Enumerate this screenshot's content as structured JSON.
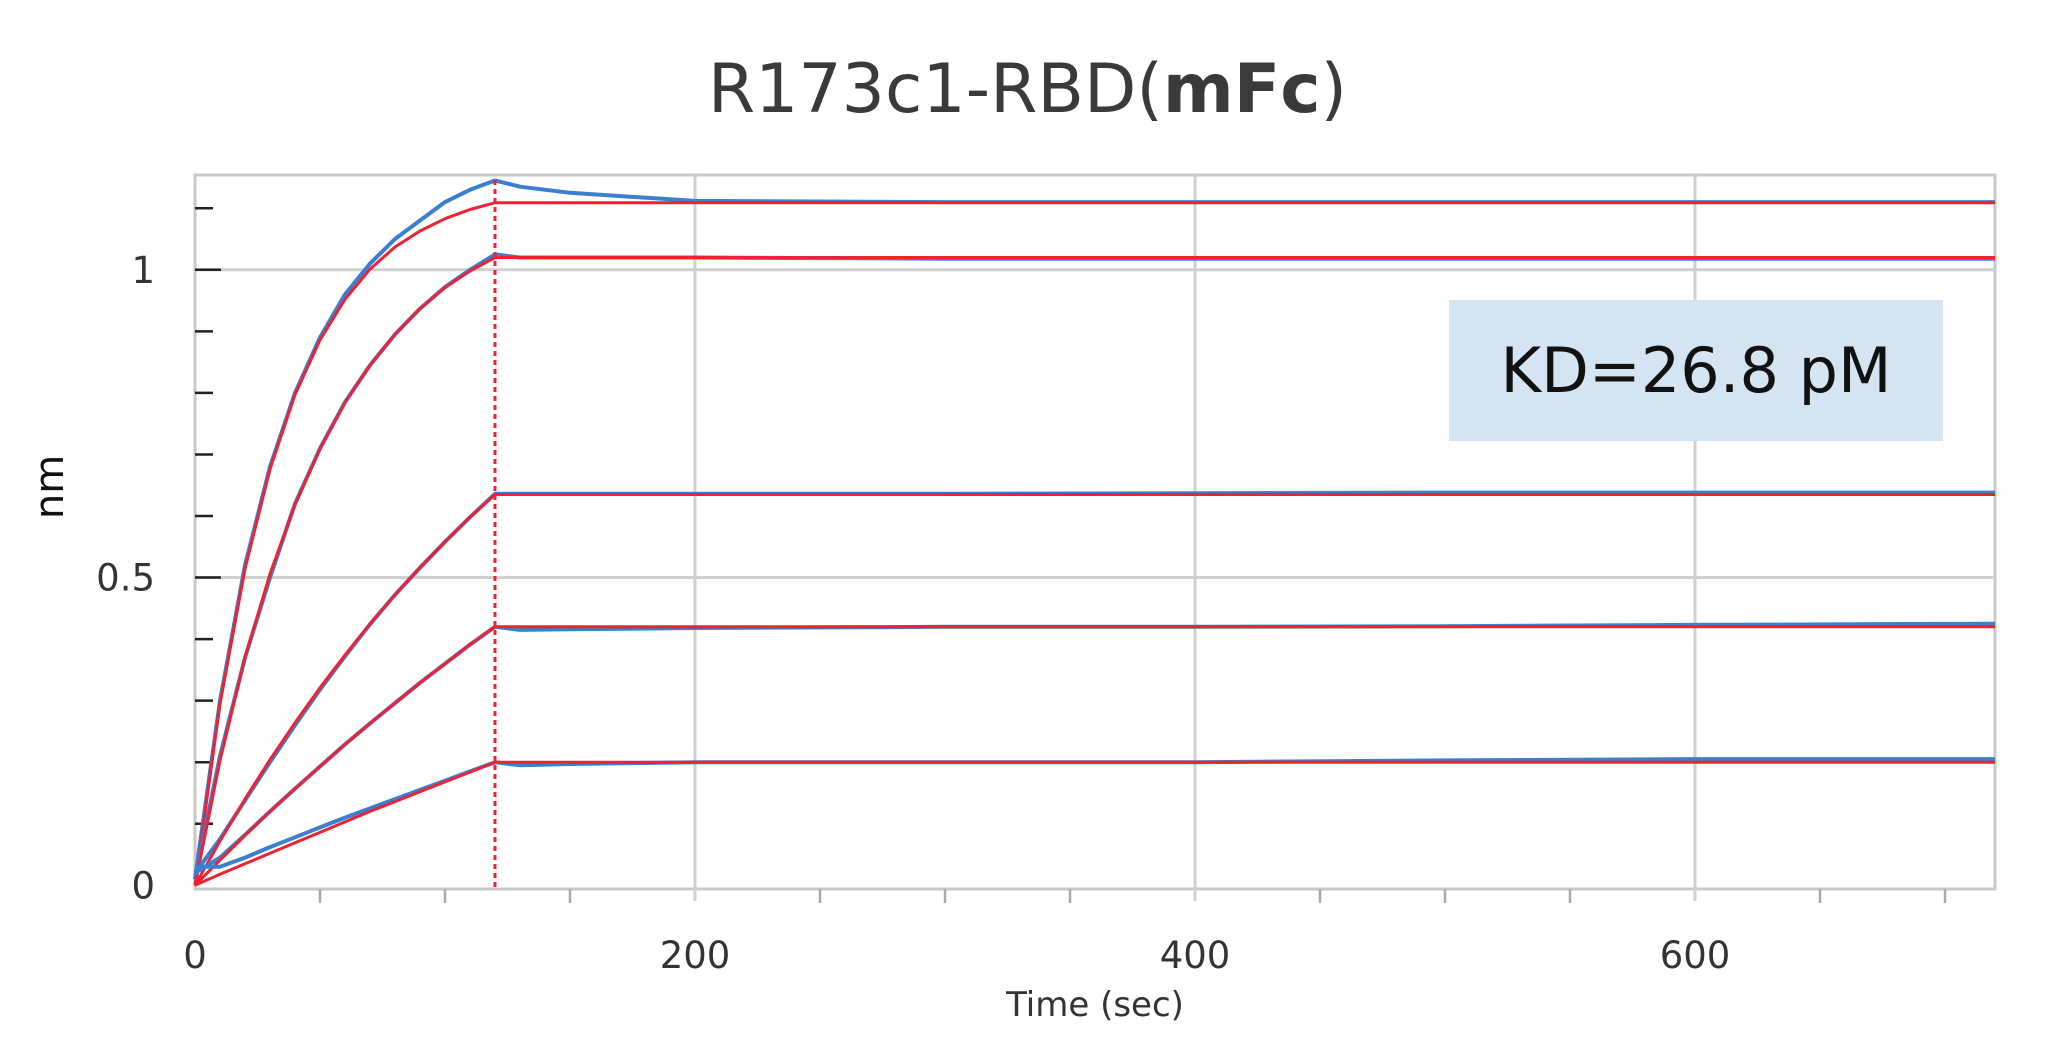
{
  "chart_data": {
    "type": "line",
    "title_parts": [
      "R173c1-RBD(",
      "mFc",
      ")"
    ],
    "xlabel": "Time (sec)",
    "ylabel": "nm",
    "xlim": [
      0,
      720
    ],
    "ylim": [
      -0.006,
      1.154
    ],
    "x_ticks": [
      0,
      200,
      400,
      600
    ],
    "x_tick_labels": [
      "0",
      "200",
      "400",
      "600"
    ],
    "x_minor_step": 50,
    "y_ticks": [
      0,
      0.5,
      1
    ],
    "y_tick_labels": [
      "0",
      "0.5",
      "1"
    ],
    "y_minor_step": 0.1,
    "grid": true,
    "association_end": 120,
    "annotation": "KD=26.8 pM",
    "colors": {
      "measured": "#3a7fd0",
      "fit": "#ee2233",
      "grid": "#d0d0d0",
      "frame": "#c8c8c8"
    },
    "x": [
      0,
      10,
      20,
      30,
      40,
      50,
      60,
      70,
      80,
      90,
      100,
      110,
      120,
      130,
      150,
      200,
      300,
      400,
      500,
      600,
      720
    ],
    "series": [
      {
        "kind": "measured",
        "values": [
          0.01,
          0.3,
          0.52,
          0.68,
          0.8,
          0.89,
          0.96,
          1.01,
          1.05,
          1.08,
          1.11,
          1.13,
          1.145,
          1.135,
          1.125,
          1.112,
          1.11,
          1.11,
          1.11,
          1.11,
          1.11
        ]
      },
      {
        "kind": "fit",
        "values": [
          0,
          0.295,
          0.514,
          0.676,
          0.797,
          0.886,
          0.952,
          1.001,
          1.037,
          1.063,
          1.083,
          1.098,
          1.109,
          1.109,
          1.109,
          1.109,
          1.109,
          1.109,
          1.109,
          1.109,
          1.109
        ]
      },
      {
        "kind": "measured",
        "values": [
          0.01,
          0.21,
          0.37,
          0.5,
          0.62,
          0.71,
          0.785,
          0.845,
          0.895,
          0.937,
          0.972,
          1.0,
          1.025,
          1.02,
          1.02,
          1.02,
          1.018,
          1.018,
          1.018,
          1.018,
          1.018
        ]
      },
      {
        "kind": "fit",
        "values": [
          0,
          0.203,
          0.37,
          0.506,
          0.618,
          0.709,
          0.784,
          0.845,
          0.895,
          0.937,
          0.971,
          0.998,
          1.02,
          1.02,
          1.02,
          1.02,
          1.02,
          1.02,
          1.02,
          1.02,
          1.02
        ]
      },
      {
        "kind": "measured",
        "values": [
          0.02,
          0.075,
          0.138,
          0.2,
          0.26,
          0.318,
          0.372,
          0.424,
          0.472,
          0.516,
          0.558,
          0.598,
          0.636,
          0.636,
          0.636,
          0.636,
          0.636,
          0.637,
          0.638,
          0.638,
          0.638
        ]
      },
      {
        "kind": "fit",
        "values": [
          0,
          0.072,
          0.14,
          0.204,
          0.264,
          0.321,
          0.374,
          0.425,
          0.472,
          0.516,
          0.558,
          0.598,
          0.635,
          0.635,
          0.635,
          0.635,
          0.635,
          0.635,
          0.635,
          0.635,
          0.635
        ]
      },
      {
        "kind": "measured",
        "values": [
          0.02,
          0.045,
          0.082,
          0.12,
          0.157,
          0.193,
          0.229,
          0.263,
          0.296,
          0.329,
          0.36,
          0.391,
          0.42,
          0.415,
          0.416,
          0.418,
          0.42,
          0.42,
          0.421,
          0.423,
          0.425
        ]
      },
      {
        "kind": "fit",
        "values": [
          0,
          0.041,
          0.081,
          0.12,
          0.157,
          0.193,
          0.229,
          0.263,
          0.296,
          0.329,
          0.36,
          0.391,
          0.42,
          0.42,
          0.42,
          0.42,
          0.42,
          0.42,
          0.42,
          0.42,
          0.42
        ]
      },
      {
        "kind": "measured",
        "values": [
          0.03,
          0.03,
          0.045,
          0.062,
          0.078,
          0.094,
          0.11,
          0.125,
          0.14,
          0.155,
          0.17,
          0.185,
          0.2,
          0.195,
          0.197,
          0.2,
          0.2,
          0.2,
          0.203,
          0.205,
          0.205
        ]
      },
      {
        "kind": "fit",
        "values": [
          0,
          0.018,
          0.035,
          0.052,
          0.069,
          0.086,
          0.103,
          0.12,
          0.136,
          0.152,
          0.168,
          0.184,
          0.2,
          0.2,
          0.2,
          0.2,
          0.2,
          0.2,
          0.2,
          0.2,
          0.2
        ]
      }
    ]
  }
}
